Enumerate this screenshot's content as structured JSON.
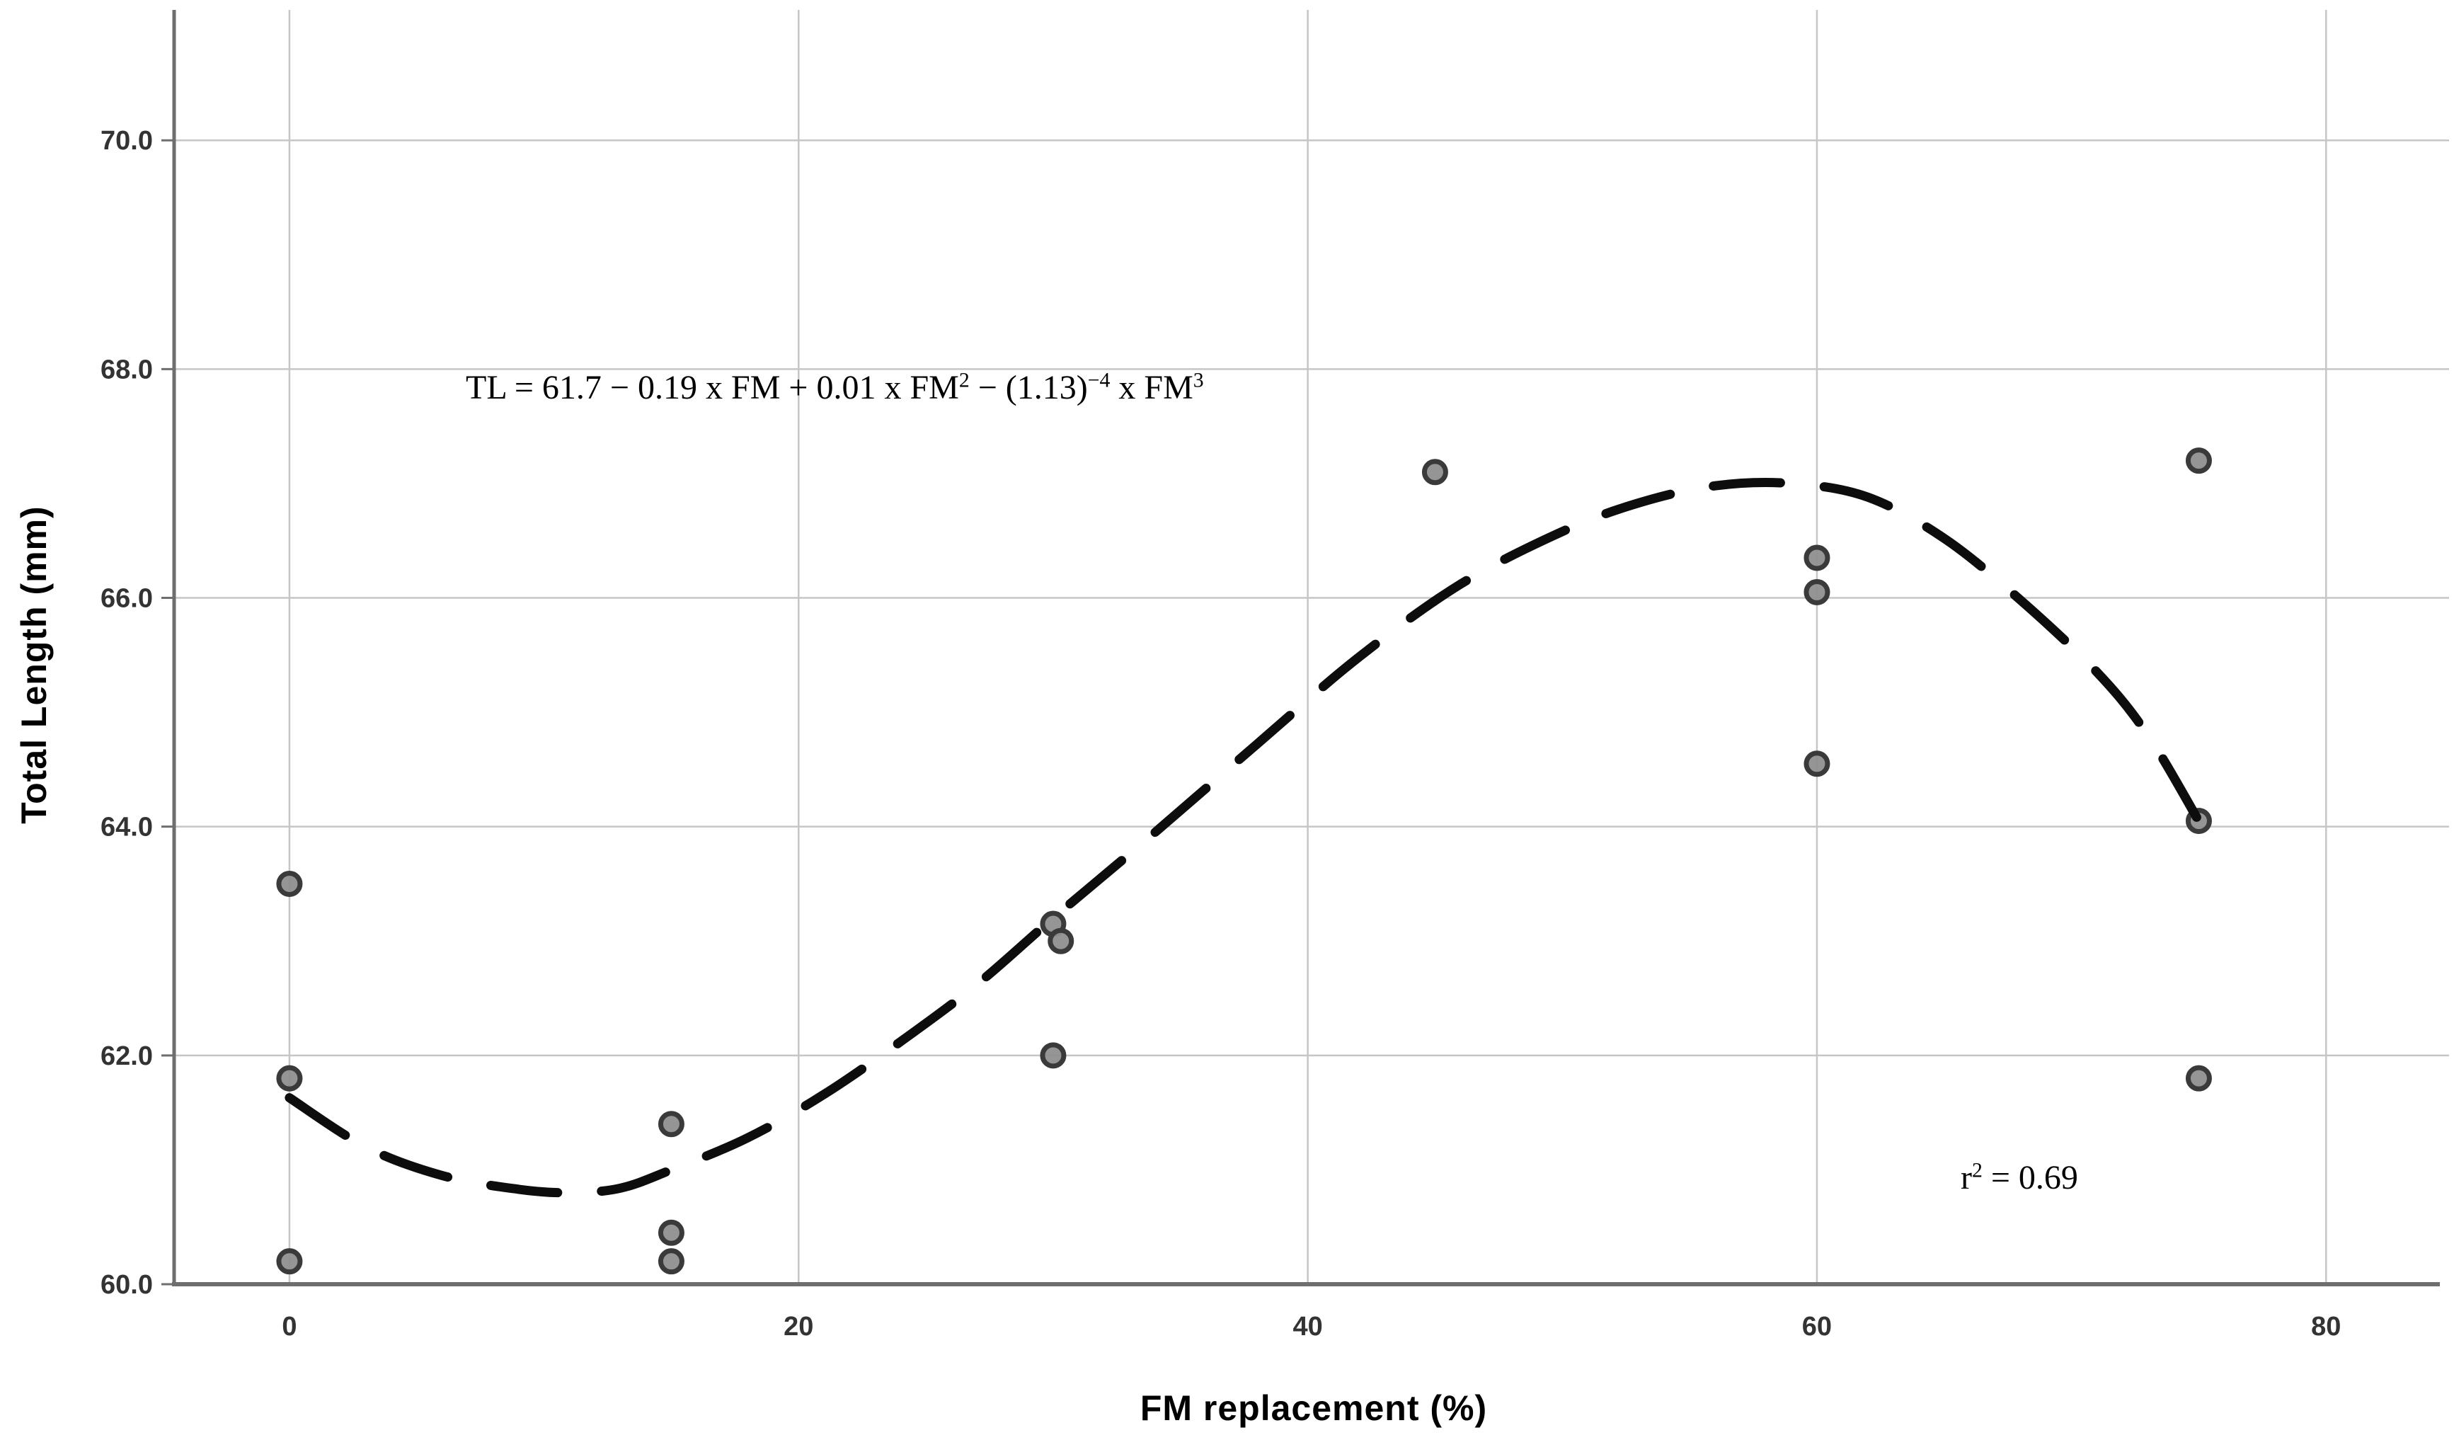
{
  "figure": {
    "y_axis_title": "Total Length (mm)",
    "x_axis_title": "FM replacement (%)",
    "equation_text": "TL = 61.7 − 0.19 x FM + 0.01 x FM² − (1.13)⁻⁴ x FM³",
    "equation_parts": [
      {
        "t": "TL = 61.7 − 0.19 x FM + 0.01 x FM",
        "sup": false
      },
      {
        "t": "2",
        "sup": true
      },
      {
        "t": " − (1.13)",
        "sup": false
      },
      {
        "t": "−4",
        "sup": true
      },
      {
        "t": " x FM",
        "sup": false
      },
      {
        "t": "3",
        "sup": true
      }
    ],
    "r_squared_text": "r² = 0.69",
    "r_squared_parts": [
      {
        "t": "r",
        "sup": false
      },
      {
        "t": "2",
        "sup": true
      },
      {
        "t": " = 0.69",
        "sup": false
      }
    ]
  },
  "chart_data": {
    "type": "scatter",
    "title": "",
    "xlabel": "FM replacement (%)",
    "ylabel": "Total Length (mm)",
    "xlim": [
      -4.53,
      84.83
    ],
    "ylim": [
      60.0,
      71.14
    ],
    "grid": true,
    "legend": "none",
    "x_ticks": [
      0,
      20,
      40,
      60,
      80
    ],
    "x_tick_labels": [
      "0",
      "20",
      "40",
      "60",
      "80"
    ],
    "y_ticks": [
      60.0,
      62.0,
      64.0,
      66.0,
      68.0,
      70.0
    ],
    "y_tick_labels": [
      "60.0",
      "62.0",
      "64.0",
      "66.0",
      "68.0",
      "70.0"
    ],
    "points": [
      [
        0,
        63.5
      ],
      [
        0,
        61.8
      ],
      [
        0,
        60.2
      ],
      [
        15,
        61.4
      ],
      [
        15,
        60.45
      ],
      [
        15,
        60.2
      ],
      [
        30,
        63.15
      ],
      [
        30.3,
        63.0
      ],
      [
        30,
        62.0
      ],
      [
        45,
        67.1
      ],
      [
        60,
        66.35
      ],
      [
        60,
        66.05
      ],
      [
        60,
        64.55
      ],
      [
        75,
        67.2
      ],
      [
        75,
        64.05
      ],
      [
        75,
        61.8
      ]
    ],
    "fit_curve": {
      "model": "cubic",
      "line_style": "dashed",
      "line_color": "#0d0d0d",
      "points": [
        [
          0,
          61.63
        ],
        [
          3,
          61.2
        ],
        [
          6,
          60.95
        ],
        [
          9,
          60.83
        ],
        [
          11,
          60.8
        ],
        [
          13,
          60.84
        ],
        [
          15,
          61.0
        ],
        [
          18,
          61.28
        ],
        [
          21,
          61.66
        ],
        [
          24,
          62.12
        ],
        [
          27,
          62.62
        ],
        [
          30,
          63.2
        ],
        [
          34,
          63.95
        ],
        [
          38,
          64.72
        ],
        [
          42,
          65.48
        ],
        [
          46,
          66.12
        ],
        [
          50,
          66.58
        ],
        [
          53,
          66.83
        ],
        [
          56,
          66.98
        ],
        [
          59,
          67.0
        ],
        [
          62,
          66.88
        ],
        [
          65,
          66.52
        ],
        [
          68,
          65.98
        ],
        [
          71,
          65.35
        ],
        [
          73,
          64.8
        ],
        [
          75,
          64.05
        ]
      ]
    },
    "annotations": [
      {
        "text": "TL = 61.7 − 0.19 x FM + 0.01 x FM² − (1.13)⁻⁴ x FM³",
        "x": 7,
        "y": 67.9
      },
      {
        "text": "r² = 0.69",
        "x": 65.6,
        "y": 60.9
      }
    ],
    "colors": {
      "background": "#ffffff",
      "gridline": "#c6c6c6",
      "axis_line": "#6e6e6e",
      "tick_label": "#333333",
      "marker_fill": "#8f8f8f",
      "marker_stroke": "#3a3a3a",
      "curve": "#0d0d0d"
    }
  }
}
